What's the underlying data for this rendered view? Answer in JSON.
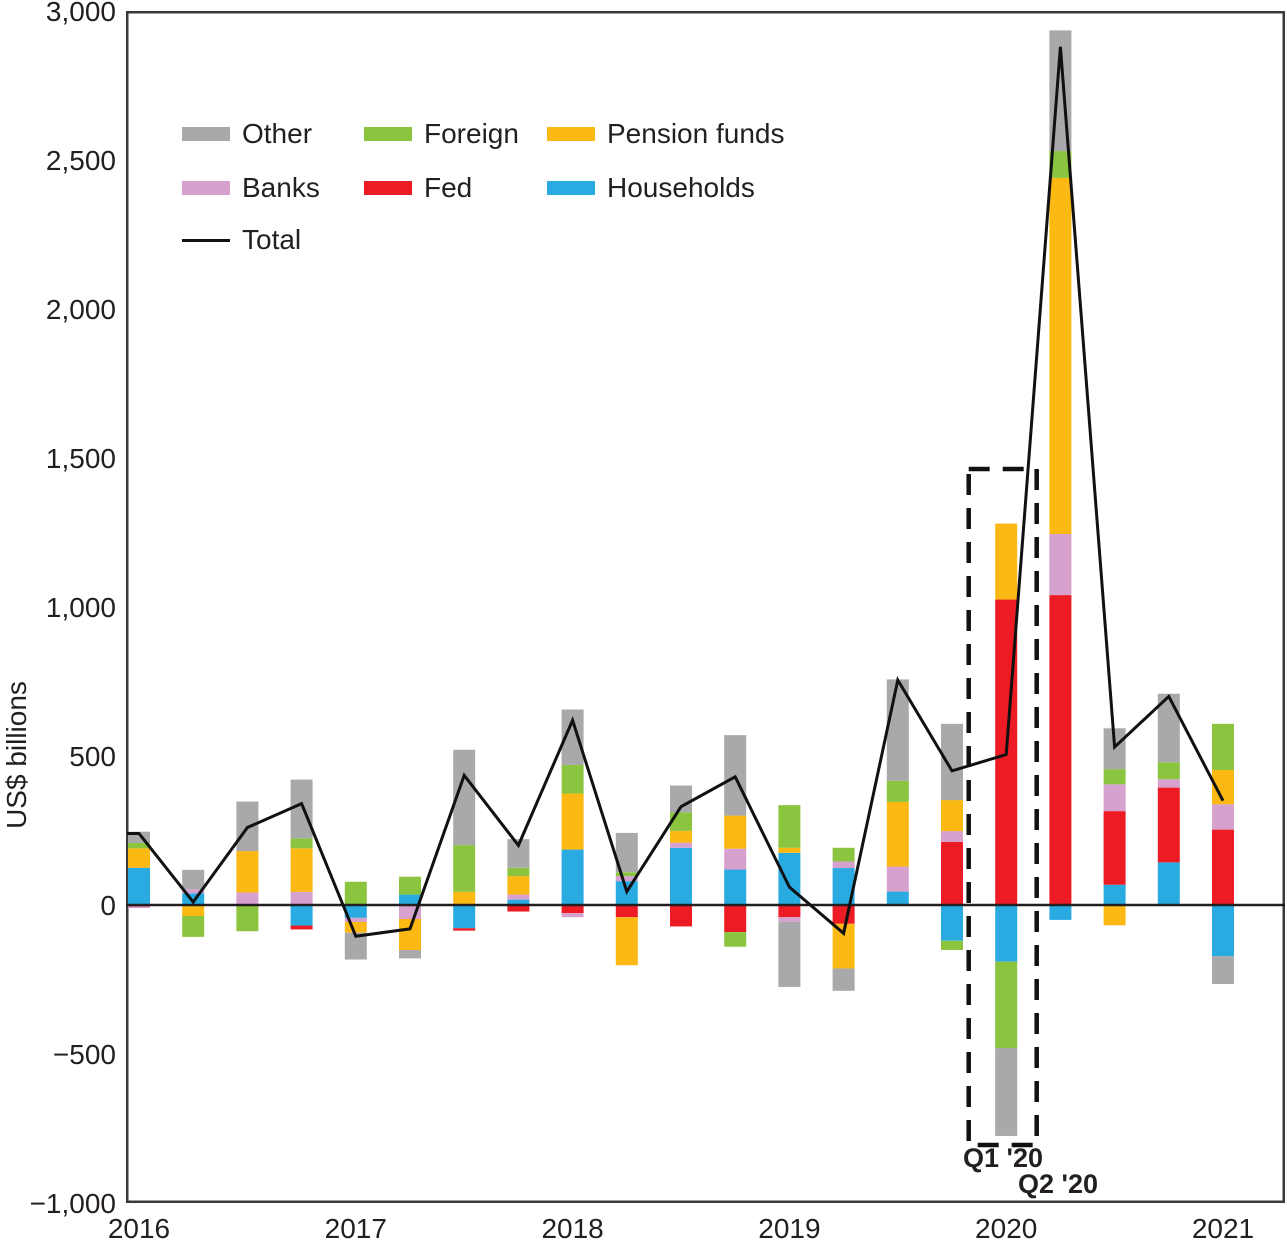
{
  "chart_data": {
    "type": "bar",
    "stacked": true,
    "overlay_line": true,
    "title": "",
    "xlabel": "",
    "ylabel": "US$ billions",
    "ylim": [
      -1000,
      3000
    ],
    "grid": false,
    "y_ticks": [
      {
        "value": 3000,
        "label": "3,000"
      },
      {
        "value": 2500,
        "label": "2,500"
      },
      {
        "value": 2000,
        "label": "2,000"
      },
      {
        "value": 1500,
        "label": "1,500"
      },
      {
        "value": 1000,
        "label": "1,000"
      },
      {
        "value": 500,
        "label": "500"
      },
      {
        "value": 0,
        "label": "0"
      },
      {
        "value": -500,
        "label": "−500"
      },
      {
        "value": -1000,
        "label": "−1,000"
      }
    ],
    "categories": [
      "2016 Q1",
      "2016 Q2",
      "2016 Q3",
      "2016 Q4",
      "2017 Q1",
      "2017 Q2",
      "2017 Q3",
      "2017 Q4",
      "2018 Q1",
      "2018 Q2",
      "2018 Q3",
      "2018 Q4",
      "2019 Q1",
      "2019 Q2",
      "2019 Q3",
      "2019 Q4",
      "2020 Q1",
      "2020 Q2",
      "2020 Q3",
      "2020 Q4",
      "2021 Q1"
    ],
    "x_year_labels": [
      {
        "label": "2016",
        "quarter_index": 0
      },
      {
        "label": "2017",
        "quarter_index": 4
      },
      {
        "label": "2018",
        "quarter_index": 8
      },
      {
        "label": "2019",
        "quarter_index": 12
      },
      {
        "label": "2020",
        "quarter_index": 16
      },
      {
        "label": "2021",
        "quarter_index": 20
      }
    ],
    "series": [
      {
        "name": "Households",
        "color": "#29abe2",
        "values": [
          125,
          39,
          0,
          -69,
          -43,
          35,
          -78,
          18,
          186,
          80,
          192,
          119,
          175,
          124,
          45,
          -120,
          -190,
          -50,
          68,
          143,
          -172
        ]
      },
      {
        "name": "Fed",
        "color": "#ed1c24",
        "values": [
          -5,
          0,
          0,
          -13,
          0,
          0,
          -8,
          -22,
          -27,
          -41,
          -72,
          -91,
          -41,
          -63,
          0,
          212,
          1025,
          1040,
          247,
          251,
          253
        ]
      },
      {
        "name": "Banks",
        "color": "#d7a1ce",
        "values": [
          -5,
          14,
          42,
          44,
          -14,
          -47,
          0,
          17,
          -14,
          17,
          17,
          70,
          -15,
          22,
          84,
          36,
          0,
          205,
          90,
          28,
          85
        ]
      },
      {
        "name": "Pension funds",
        "color": "#fcb813",
        "values": [
          65,
          -37,
          139,
          146,
          -36,
          -104,
          44,
          62,
          188,
          -161,
          40,
          111,
          17,
          -150,
          217,
          104,
          255,
          1195,
          -68,
          0,
          115
        ]
      },
      {
        "name": "Foreign",
        "color": "#8bc540",
        "values": [
          18,
          -70,
          -88,
          34,
          78,
          60,
          157,
          28,
          96,
          13,
          62,
          -49,
          143,
          46,
          71,
          -31,
          -290,
          90,
          51,
          57,
          155
        ]
      },
      {
        "name": "Other",
        "color": "#a9a9ab",
        "values": [
          38,
          65,
          166,
          197,
          -90,
          -28,
          320,
          96,
          186,
          132,
          90,
          270,
          -219,
          -75,
          340,
          256,
          -295,
          405,
          137,
          230,
          -93
        ]
      }
    ],
    "total_line": {
      "name": "Total",
      "color": "#111111",
      "values": [
        240,
        10,
        260,
        340,
        -105,
        -80,
        435,
        200,
        620,
        45,
        330,
        430,
        60,
        -95,
        755,
        450,
        505,
        2880,
        530,
        700,
        350
      ]
    },
    "annotations": {
      "highlight_box_category": "2020 Q1",
      "labels": [
        {
          "text": "Q1 '20"
        },
        {
          "text": "Q2 '20"
        }
      ]
    }
  },
  "legend": {
    "items": [
      {
        "label": "Other",
        "color": "#a9a9ab",
        "type": "box"
      },
      {
        "label": "Foreign",
        "color": "#8bc540",
        "type": "box"
      },
      {
        "label": "Pension funds",
        "color": "#fcb813",
        "type": "box"
      },
      {
        "label": "Banks",
        "color": "#d7a1ce",
        "type": "box"
      },
      {
        "label": "Fed",
        "color": "#ed1c24",
        "type": "box"
      },
      {
        "label": "Households",
        "color": "#29abe2",
        "type": "box"
      },
      {
        "label": "Total",
        "color": "#111111",
        "type": "line"
      }
    ]
  }
}
